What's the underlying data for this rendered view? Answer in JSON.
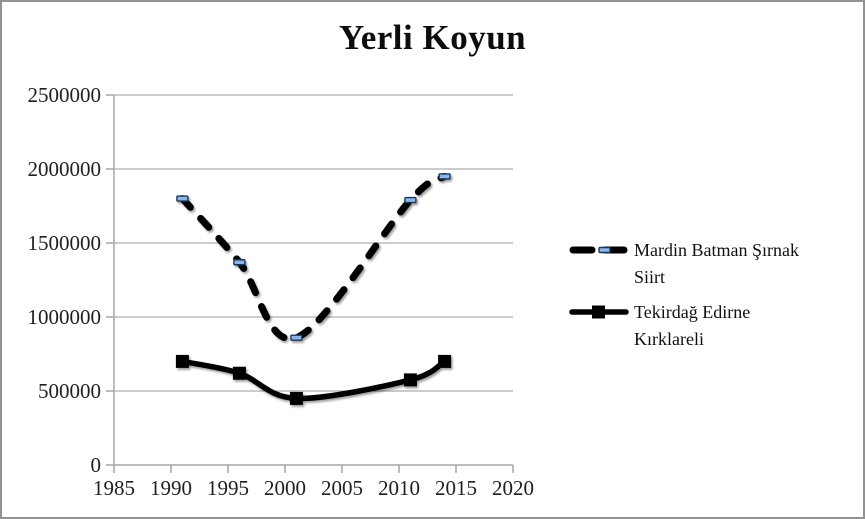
{
  "window": {
    "background": "#ffffff",
    "border_color": "#929292"
  },
  "chart_data": {
    "type": "line",
    "title": "Yerli Koyun",
    "x": [
      1991,
      1996,
      2001,
      2011,
      2014
    ],
    "series": [
      {
        "name": "Mardin Batman Şırnak Siirt",
        "values": [
          1800000,
          1370000,
          860000,
          1790000,
          1950000
        ],
        "style": "dashed",
        "color": "#000000",
        "marker": "dash",
        "marker_fill": "#8fb4e3",
        "marker_stroke": "#17375d"
      },
      {
        "name": "Tekirdağ Edirne Kırklareli",
        "values": [
          700000,
          620000,
          450000,
          575000,
          700000
        ],
        "style": "solid",
        "color": "#000000",
        "marker": "square",
        "marker_fill": "#000000"
      }
    ],
    "xlim": [
      1985,
      2020
    ],
    "ylim": [
      0,
      2500000
    ],
    "x_ticks": [
      1985,
      1990,
      1995,
      2000,
      2005,
      2010,
      2015,
      2020
    ],
    "y_ticks": [
      0,
      500000,
      1000000,
      1500000,
      2000000,
      2500000
    ],
    "grid": "horizontal",
    "smoothed": true,
    "legend_position": "right",
    "axis_color": "#a6a6a6",
    "grid_color": "#adadad",
    "tick_label_color": "#1f1f1f"
  },
  "legend": {
    "items": [
      {
        "label": "Mardin Batman Şırnak Siirt",
        "line1": "Mardin Batman Şırnak",
        "line2": "Siirt"
      },
      {
        "label": "Tekirdağ Edirne Kırklareli",
        "line1": "Tekirdağ Edirne",
        "line2": "Kırklareli"
      }
    ]
  }
}
